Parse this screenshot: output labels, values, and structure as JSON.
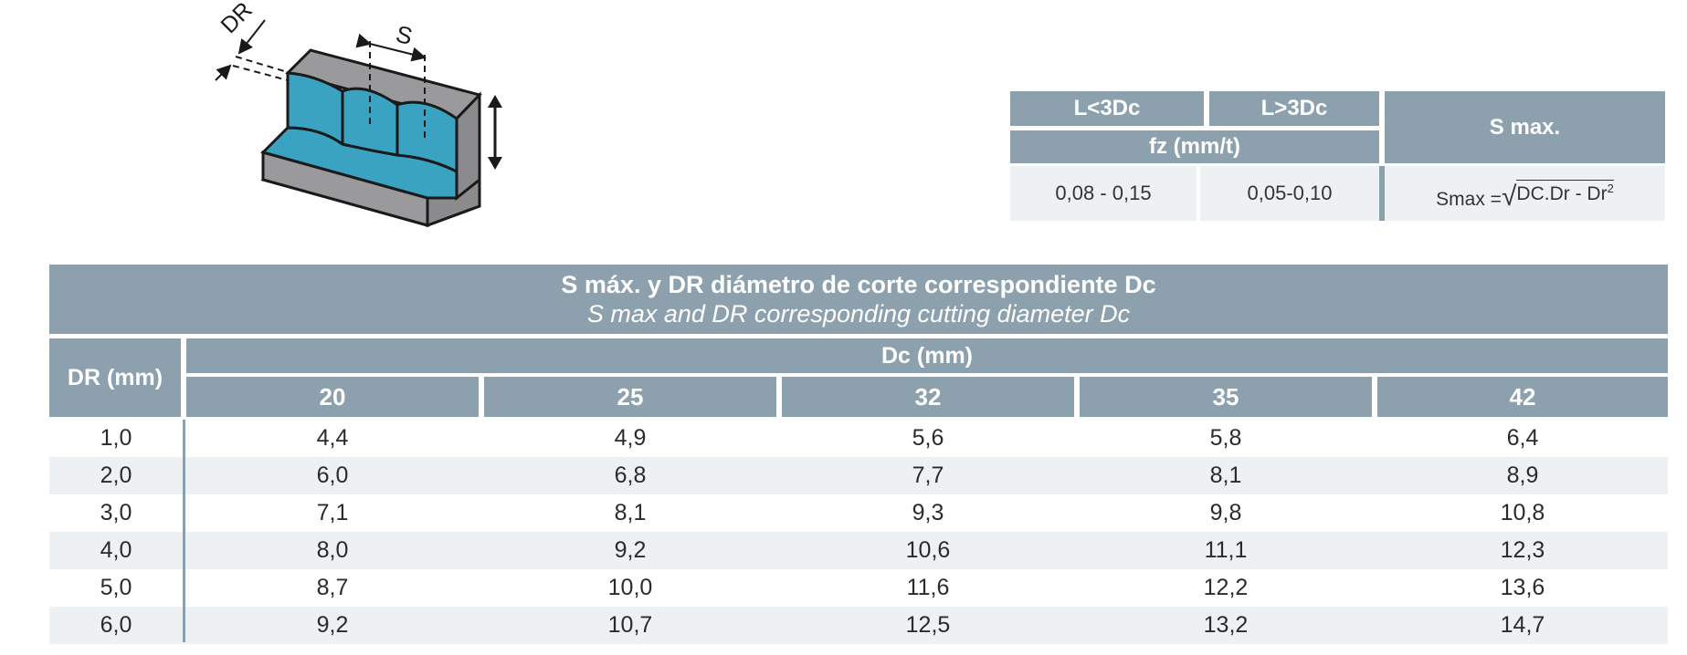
{
  "diagram": {
    "label_dr": "DR",
    "label_s": "S",
    "colors": {
      "cut_faces": "#3aa3c2",
      "block": "#9a9a9c",
      "outline": "#1a1a1a"
    },
    "icons": [
      "double-arrow-icon"
    ]
  },
  "param_table": {
    "headers": {
      "l_lt": "L<3Dc",
      "l_gt": "L>3Dc",
      "fz": "fz (mm/t)",
      "smax": "S max."
    },
    "values": {
      "fz_lt": "0,08 - 0,15",
      "fz_gt": "0,05-0,10"
    },
    "formula": {
      "lhs": "Smax = ",
      "radicand": "DC.Dr - Dr",
      "exponent": "2"
    }
  },
  "main_table": {
    "title": "S máx. y DR diámetro de corte correspondiente Dc",
    "subtitle": "S max and DR corresponding cutting diameter Dc",
    "dr_header": "DR (mm)",
    "dc_header": "Dc (mm)",
    "columns": [
      "20",
      "25",
      "32",
      "35",
      "42"
    ],
    "rows": [
      {
        "dr": "1,0",
        "values": [
          "4,4",
          "4,9",
          "5,6",
          "5,8",
          "6,4"
        ]
      },
      {
        "dr": "2,0",
        "values": [
          "6,0",
          "6,8",
          "7,7",
          "8,1",
          "8,9"
        ]
      },
      {
        "dr": "3,0",
        "values": [
          "7,1",
          "8,1",
          "9,3",
          "9,8",
          "10,8"
        ]
      },
      {
        "dr": "4,0",
        "values": [
          "8,0",
          "9,2",
          "10,6",
          "11,1",
          "12,3"
        ]
      },
      {
        "dr": "5,0",
        "values": [
          "8,7",
          "10,0",
          "11,6",
          "12,2",
          "13,6"
        ]
      },
      {
        "dr": "6,0",
        "values": [
          "9,2",
          "10,7",
          "12,5",
          "13,2",
          "14,7"
        ]
      }
    ],
    "colors": {
      "header": "#8ca0ad",
      "stripe": "#edf1f4"
    }
  }
}
